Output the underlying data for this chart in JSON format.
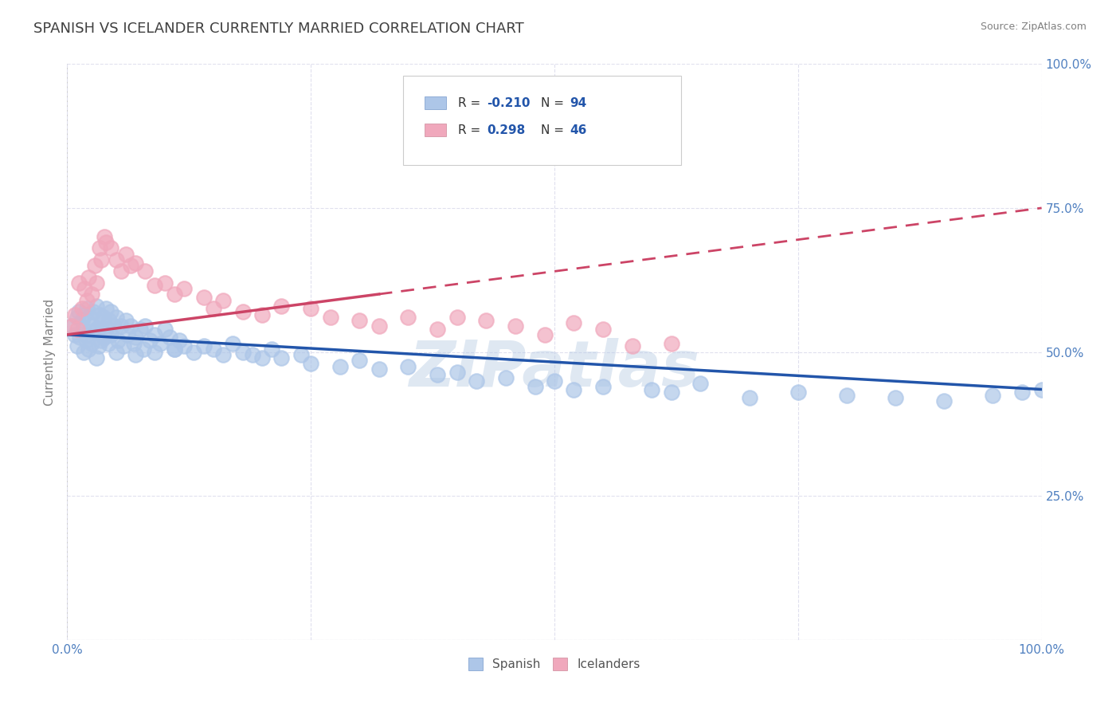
{
  "title": "SPANISH VS ICELANDER CURRENTLY MARRIED CORRELATION CHART",
  "source": "Source: ZipAtlas.com",
  "ylabel": "Currently Married",
  "legend_label1": "Spanish",
  "legend_label2": "Icelanders",
  "r1": "-0.210",
  "n1": "94",
  "r2": "0.298",
  "n2": "46",
  "color_spanish": "#adc6e8",
  "color_icelander": "#f0a8bc",
  "color_line_spanish": "#2255aa",
  "color_line_icelander": "#cc4466",
  "watermark": "ZIPatlas",
  "background_color": "#ffffff",
  "grid_color": "#e0e0ee",
  "title_color": "#404040",
  "title_fontsize": 13,
  "tick_color": "#5080c0",
  "ylabel_color": "#808080",
  "source_color": "#808080",
  "spanish_x": [
    0.005,
    0.008,
    0.01,
    0.01,
    0.012,
    0.013,
    0.015,
    0.016,
    0.017,
    0.018,
    0.019,
    0.02,
    0.02,
    0.022,
    0.023,
    0.025,
    0.025,
    0.027,
    0.028,
    0.03,
    0.03,
    0.032,
    0.033,
    0.035,
    0.035,
    0.037,
    0.038,
    0.04,
    0.04,
    0.042,
    0.043,
    0.045,
    0.045,
    0.048,
    0.05,
    0.052,
    0.055,
    0.058,
    0.06,
    0.062,
    0.065,
    0.068,
    0.07,
    0.075,
    0.078,
    0.08,
    0.085,
    0.09,
    0.095,
    0.1,
    0.105,
    0.11,
    0.115,
    0.12,
    0.13,
    0.14,
    0.15,
    0.16,
    0.17,
    0.18,
    0.19,
    0.2,
    0.21,
    0.22,
    0.24,
    0.25,
    0.28,
    0.3,
    0.32,
    0.35,
    0.38,
    0.4,
    0.42,
    0.45,
    0.48,
    0.5,
    0.52,
    0.55,
    0.6,
    0.62,
    0.65,
    0.7,
    0.75,
    0.8,
    0.85,
    0.9,
    0.95,
    0.98,
    1.0,
    0.03,
    0.05,
    0.07,
    0.09,
    0.11
  ],
  "spanish_y": [
    0.545,
    0.53,
    0.56,
    0.51,
    0.57,
    0.525,
    0.555,
    0.54,
    0.5,
    0.565,
    0.52,
    0.575,
    0.53,
    0.505,
    0.56,
    0.545,
    0.515,
    0.57,
    0.535,
    0.58,
    0.54,
    0.51,
    0.565,
    0.55,
    0.52,
    0.56,
    0.525,
    0.575,
    0.54,
    0.515,
    0.555,
    0.57,
    0.53,
    0.545,
    0.56,
    0.52,
    0.545,
    0.51,
    0.555,
    0.53,
    0.545,
    0.515,
    0.525,
    0.54,
    0.505,
    0.545,
    0.52,
    0.53,
    0.515,
    0.54,
    0.525,
    0.505,
    0.52,
    0.51,
    0.5,
    0.51,
    0.505,
    0.495,
    0.515,
    0.5,
    0.495,
    0.49,
    0.505,
    0.49,
    0.495,
    0.48,
    0.475,
    0.485,
    0.47,
    0.475,
    0.46,
    0.465,
    0.45,
    0.455,
    0.44,
    0.45,
    0.435,
    0.44,
    0.435,
    0.43,
    0.445,
    0.42,
    0.43,
    0.425,
    0.42,
    0.415,
    0.425,
    0.43,
    0.435,
    0.49,
    0.5,
    0.495,
    0.5,
    0.505
  ],
  "icelander_x": [
    0.005,
    0.008,
    0.01,
    0.012,
    0.015,
    0.018,
    0.02,
    0.022,
    0.025,
    0.028,
    0.03,
    0.033,
    0.035,
    0.038,
    0.04,
    0.045,
    0.05,
    0.055,
    0.06,
    0.065,
    0.07,
    0.08,
    0.09,
    0.1,
    0.11,
    0.12,
    0.14,
    0.15,
    0.16,
    0.18,
    0.2,
    0.22,
    0.25,
    0.27,
    0.3,
    0.32,
    0.35,
    0.38,
    0.4,
    0.43,
    0.46,
    0.49,
    0.52,
    0.55,
    0.58,
    0.62
  ],
  "icelander_y": [
    0.545,
    0.565,
    0.54,
    0.62,
    0.575,
    0.61,
    0.59,
    0.63,
    0.6,
    0.65,
    0.62,
    0.68,
    0.66,
    0.7,
    0.69,
    0.68,
    0.66,
    0.64,
    0.67,
    0.65,
    0.655,
    0.64,
    0.615,
    0.62,
    0.6,
    0.61,
    0.595,
    0.575,
    0.59,
    0.57,
    0.565,
    0.58,
    0.575,
    0.56,
    0.555,
    0.545,
    0.56,
    0.54,
    0.56,
    0.555,
    0.545,
    0.53,
    0.55,
    0.54,
    0.51,
    0.515
  ],
  "line_spanish_x0": 0.0,
  "line_spanish_x1": 1.0,
  "line_spanish_y0": 0.53,
  "line_spanish_y1": 0.435,
  "line_icelander_x0": 0.0,
  "line_icelander_x1": 1.0,
  "line_icelander_y0": 0.53,
  "line_icelander_y1": 0.75,
  "line_icelander_solid_end": 0.32,
  "xlim": [
    0.0,
    1.0
  ],
  "ylim": [
    0.0,
    1.0
  ],
  "yticks": [
    0.0,
    0.25,
    0.5,
    0.75,
    1.0
  ],
  "ytick_labels": [
    "",
    "25.0%",
    "50.0%",
    "75.0%",
    "100.0%"
  ],
  "xticks": [
    0.0,
    0.25,
    0.5,
    0.75,
    1.0
  ],
  "xtick_labels": [
    "0.0%",
    "",
    "",
    "",
    "100.0%"
  ]
}
